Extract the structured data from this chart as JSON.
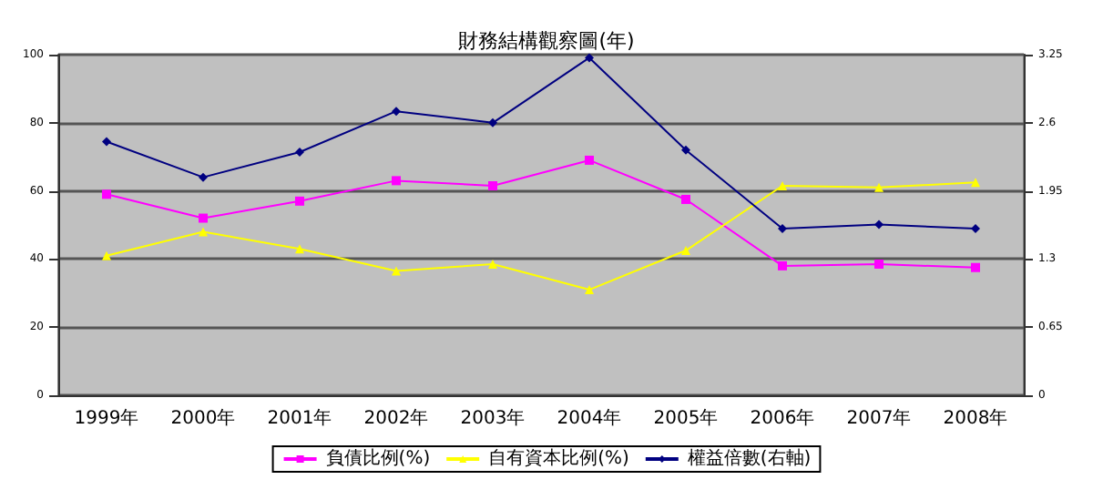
{
  "chart_data": {
    "type": "line",
    "title": "財務結構觀察圖(年)",
    "categories": [
      "1999年",
      "2000年",
      "2001年",
      "2002年",
      "2003年",
      "2004年",
      "2005年",
      "2006年",
      "2007年",
      "2008年"
    ],
    "series": [
      {
        "name": "負債比例(%)",
        "color": "#ff00ff",
        "marker": "square",
        "values": [
          59,
          52,
          57,
          63,
          61.5,
          69,
          57.5,
          38,
          38.5,
          37.5
        ]
      },
      {
        "name": "自有資本比例(%)",
        "color": "#ffff00",
        "marker": "triangle",
        "values": [
          41,
          48,
          43,
          36.5,
          38.5,
          31,
          42.5,
          61.5,
          61,
          62.5
        ]
      },
      {
        "name": "權益倍數(右軸)",
        "color": "#000080",
        "marker": "diamond",
        "axis": "y2",
        "values": [
          2.42,
          2.08,
          2.32,
          2.71,
          2.6,
          3.22,
          2.34,
          1.59,
          1.63,
          1.59
        ]
      }
    ],
    "ylim": [
      0,
      100
    ],
    "yticks": [
      0,
      20,
      40,
      60,
      80,
      100
    ],
    "y2lim": [
      0,
      3.25
    ],
    "y2ticks": [
      0,
      0.65,
      1.3,
      1.95,
      2.6,
      3.25
    ],
    "grid": "y",
    "legend": "bottom"
  }
}
